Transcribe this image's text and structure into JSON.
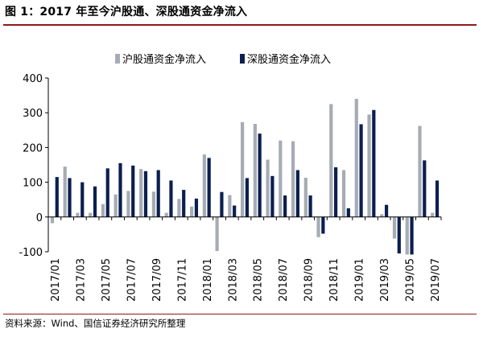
{
  "figure": {
    "title": "图 1：2017 年至今沪股通、深股通资金净流入",
    "source": "资料来源：Wind、国信证券经济研究所整理"
  },
  "colors": {
    "sh": "#a6acb4",
    "sz": "#0b1f4f",
    "axis": "#000000",
    "rule": "#8b1a1a"
  },
  "chart_data": {
    "type": "bar",
    "legend_position": "top-center",
    "grid": false,
    "xlabel": "",
    "ylabel": "",
    "ylim": [
      -100,
      400
    ],
    "yticks": [
      400,
      300,
      200,
      100,
      0,
      -100
    ],
    "ytick_labels": [
      "400",
      "300",
      "200",
      "100",
      "0",
      "-100"
    ],
    "categories": [
      "2017/01",
      "2017/02",
      "2017/03",
      "2017/04",
      "2017/05",
      "2017/06",
      "2017/07",
      "2017/08",
      "2017/09",
      "2017/10",
      "2017/11",
      "2017/12",
      "2018/01",
      "2018/02",
      "2018/03",
      "2018/04",
      "2018/05",
      "2018/06",
      "2018/07",
      "2018/08",
      "2018/09",
      "2018/10",
      "2018/11",
      "2018/12",
      "2019/01",
      "2019/02",
      "2019/03",
      "2019/04",
      "2019/05",
      "2019/06",
      "2019/07"
    ],
    "xtick_labels": [
      "2017/01",
      "2017/03",
      "2017/05",
      "2017/07",
      "2017/09",
      "2017/11",
      "2018/01",
      "2018/03",
      "2018/05",
      "2018/07",
      "2018/09",
      "2018/11",
      "2019/01",
      "2019/03",
      "2019/05",
      "2019/07"
    ],
    "series": [
      {
        "name": "沪股通资金净流入",
        "values": [
          -18,
          145,
          12,
          12,
          37,
          65,
          75,
          138,
          73,
          12,
          52,
          30,
          180,
          -98,
          63,
          273,
          268,
          165,
          220,
          218,
          113,
          -58,
          325,
          135,
          340,
          295,
          8,
          -62,
          -108,
          262,
          12
        ]
      },
      {
        "name": "深股通资金净流入",
        "values": [
          115,
          112,
          100,
          88,
          140,
          155,
          148,
          132,
          135,
          105,
          78,
          53,
          170,
          72,
          33,
          112,
          240,
          118,
          62,
          135,
          62,
          -48,
          143,
          25,
          267,
          308,
          35,
          -105,
          -108,
          163,
          105
        ]
      }
    ]
  }
}
